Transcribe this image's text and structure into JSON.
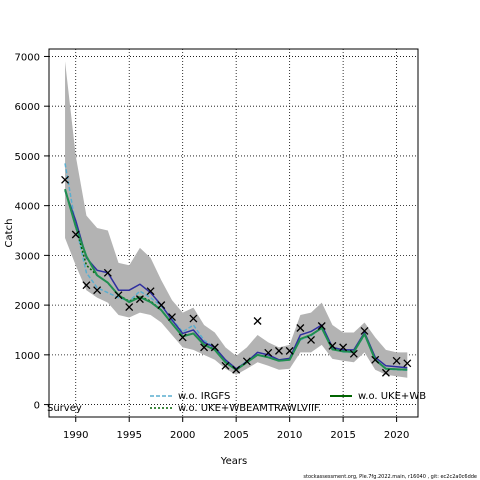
{
  "chart_data": {
    "type": "line",
    "xlabel": "Years",
    "ylabel": "Catch",
    "xlim": [
      1987.5,
      2022
    ],
    "ylim": [
      -250,
      7150
    ],
    "x_ticks": [
      "1990",
      "1995",
      "2000",
      "2005",
      "2010",
      "2015",
      "2020"
    ],
    "y_ticks": [
      "0",
      "1000",
      "2000",
      "3000",
      "4000",
      "5000",
      "6000",
      "7000"
    ],
    "grid": true,
    "grid_style": "dotted",
    "legend_placement": "bottom",
    "years": [
      1989,
      1990,
      1991,
      1992,
      1993,
      1994,
      1995,
      1996,
      1997,
      1998,
      1999,
      2000,
      2001,
      2002,
      2003,
      2004,
      2005,
      2006,
      2007,
      2008,
      2009,
      2010,
      2011,
      2012,
      2013,
      2014,
      2015,
      2016,
      2017,
      2018,
      2019,
      2020,
      2021
    ],
    "observed": {
      "marker": "x",
      "values": [
        4520,
        3420,
        2400,
        2300,
        2650,
        2200,
        1960,
        2120,
        2280,
        2000,
        1760,
        1350,
        1730,
        1150,
        1150,
        780,
        700,
        870,
        1680,
        1040,
        1080,
        1080,
        1540,
        1300,
        1580,
        1180,
        1150,
        1020,
        1480,
        900,
        640,
        880,
        830
      ]
    },
    "confidence_band": {
      "color": "#b3b3b3",
      "upper": [
        6900,
        5000,
        3800,
        3550,
        3500,
        2850,
        2800,
        3150,
        2950,
        2500,
        2100,
        1850,
        1950,
        1600,
        1450,
        1150,
        980,
        1150,
        1400,
        1250,
        1150,
        1200,
        1800,
        1850,
        2050,
        1600,
        1450,
        1450,
        1650,
        1350,
        1100,
        1050,
        1050
      ],
      "lower": [
        3350,
        2800,
        2300,
        2150,
        2050,
        1800,
        1750,
        1850,
        1800,
        1650,
        1400,
        1150,
        1100,
        1000,
        900,
        720,
        600,
        720,
        850,
        780,
        700,
        720,
        1050,
        1050,
        1200,
        920,
        880,
        850,
        1050,
        700,
        600,
        570,
        540
      ]
    },
    "series": [
      {
        "name": "Survey",
        "color": "#000000",
        "dash": "",
        "visible": false,
        "values": [
          4300,
          3750,
          2950,
          2750,
          2650,
          2300,
          2300,
          2400,
          2250,
          2000,
          1700,
          1450,
          1500,
          1250,
          1150,
          900,
          720,
          870,
          1050,
          1000,
          920,
          950,
          1400,
          1450,
          1600,
          1150,
          1100,
          1100,
          1450,
          950,
          780,
          760,
          740
        ]
      },
      {
        "name": "w.o. IRGFS",
        "color": "#5aaecf",
        "dash": "4 2",
        "values": [
          4850,
          3600,
          2650,
          2350,
          2250,
          2150,
          2080,
          2280,
          2150,
          1980,
          1720,
          1460,
          1600,
          1290,
          1150,
          880,
          690,
          880,
          1000,
          950,
          880,
          900,
          1300,
          1380,
          1550,
          1120,
          1060,
          1050,
          1400,
          900,
          720,
          700,
          690
        ]
      },
      {
        "name": "w.o. UKE+WBEAMTRAWLVIIF.",
        "color": "#006400",
        "dash": "2 2",
        "values": [
          4330,
          3580,
          2800,
          2600,
          2450,
          2200,
          2080,
          2180,
          2080,
          1900,
          1630,
          1380,
          1430,
          1210,
          1110,
          850,
          700,
          850,
          1000,
          950,
          880,
          900,
          1320,
          1400,
          1540,
          1110,
          1070,
          1060,
          1420,
          900,
          720,
          710,
          700
        ]
      },
      {
        "name": "w.o. UKE+WBEAMTRAWLVIIF.",
        "color": "#2f2fa0",
        "dash": "",
        "values": [
          4300,
          3700,
          2950,
          2700,
          2650,
          2300,
          2300,
          2420,
          2250,
          2000,
          1700,
          1430,
          1500,
          1250,
          1150,
          900,
          720,
          860,
          1050,
          1000,
          900,
          930,
          1400,
          1470,
          1600,
          1150,
          1100,
          1100,
          1450,
          950,
          780,
          760,
          740
        ]
      },
      {
        "name": "w.o. UKE+WBEAMTRAWLVIIF.",
        "color": "#1f8f50",
        "dash": "",
        "values": [
          4330,
          3580,
          2980,
          2600,
          2450,
          2200,
          2060,
          2160,
          2060,
          1900,
          1630,
          1370,
          1430,
          1200,
          1100,
          850,
          700,
          850,
          1000,
          950,
          880,
          900,
          1320,
          1400,
          1540,
          1110,
          1070,
          1060,
          1420,
          900,
          720,
          710,
          700
        ]
      }
    ],
    "legend": {
      "items": [
        {
          "label": "Survey",
          "color": "#000000",
          "dash": ""
        },
        {
          "label": "w.o. IRGFS",
          "color": "#5aaecf",
          "dash": "4 2"
        },
        {
          "label": "w.o. UKE+WBEAMTRAWLVIIF.",
          "color": "#006400",
          "dash": "2 2"
        },
        {
          "label": "w.o. UKE+WB",
          "color": "#006400",
          "dash": ""
        }
      ]
    },
    "footer": "stockassessment.org, Ple.7fg.2022.main, r16040 , git: ec2c2a0c6dde"
  }
}
